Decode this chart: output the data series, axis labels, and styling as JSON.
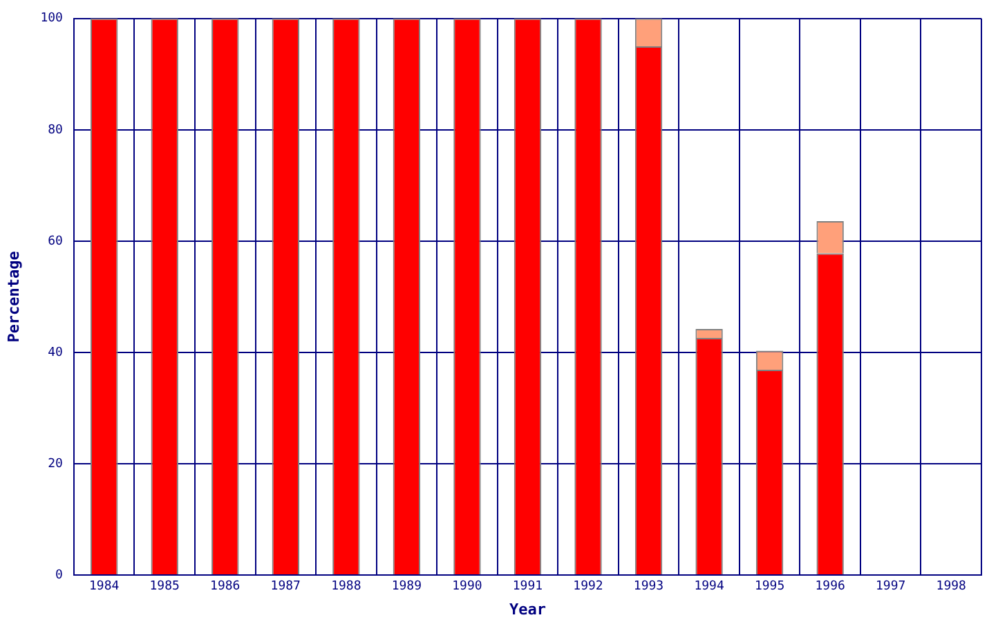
{
  "chart_data": {
    "type": "bar",
    "stacked": true,
    "xlabel": "Year",
    "ylabel": "Percentage",
    "categories": [
      "1984",
      "1985",
      "1986",
      "1987",
      "1988",
      "1989",
      "1990",
      "1991",
      "1992",
      "1993",
      "1994",
      "1995",
      "1996",
      "1997",
      "1998"
    ],
    "series": [
      {
        "color": "#ff0000",
        "values": [
          100,
          100,
          100,
          100,
          100,
          100,
          100,
          100,
          100,
          95,
          42.6,
          36.9,
          57.8,
          null,
          null
        ]
      },
      {
        "color": "#ffa07a",
        "values": [
          0,
          0,
          0,
          0,
          0,
          0,
          0,
          0,
          0,
          5,
          1.6,
          3.4,
          5.8,
          null,
          null
        ]
      }
    ],
    "ylim": [
      0,
      100
    ],
    "yticks": [
      0,
      20,
      40,
      60,
      80,
      100
    ],
    "grid": true,
    "legend": false
  }
}
